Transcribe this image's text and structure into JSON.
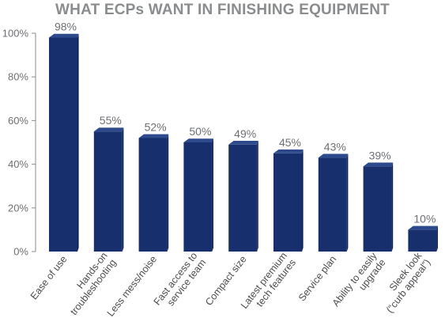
{
  "chart_data": {
    "type": "bar",
    "title": "WHAT ECPs WANT IN FINISHING EQUIPMENT",
    "categories": [
      [
        "Ease of use"
      ],
      [
        "Hands-on",
        "troubleshooting"
      ],
      [
        "Less mess/noise"
      ],
      [
        "Fast access to",
        "service team"
      ],
      [
        "Compact size"
      ],
      [
        "Latest premium",
        "tech features"
      ],
      [
        "Service plan"
      ],
      [
        "Ability to easily",
        "upgrade"
      ],
      [
        "Sleek look",
        "(“curb appeal”)"
      ]
    ],
    "values": [
      98,
      55,
      52,
      50,
      49,
      45,
      43,
      39,
      10
    ],
    "value_labels": [
      "98%",
      "55%",
      "52%",
      "50%",
      "49%",
      "45%",
      "43%",
      "39%",
      "10%"
    ],
    "yticks": [
      "0%",
      "20%",
      "40%",
      "60%",
      "80%",
      "100%"
    ],
    "ylim": [
      0,
      100
    ],
    "xlabel": "",
    "ylabel": "",
    "grid": false,
    "colors": {
      "bar_front": "#17306d",
      "bar_top": "#2d4a8c",
      "bar_side": "#0e2255",
      "axis": "#8a8c8e",
      "text": "#6d6f72"
    }
  }
}
